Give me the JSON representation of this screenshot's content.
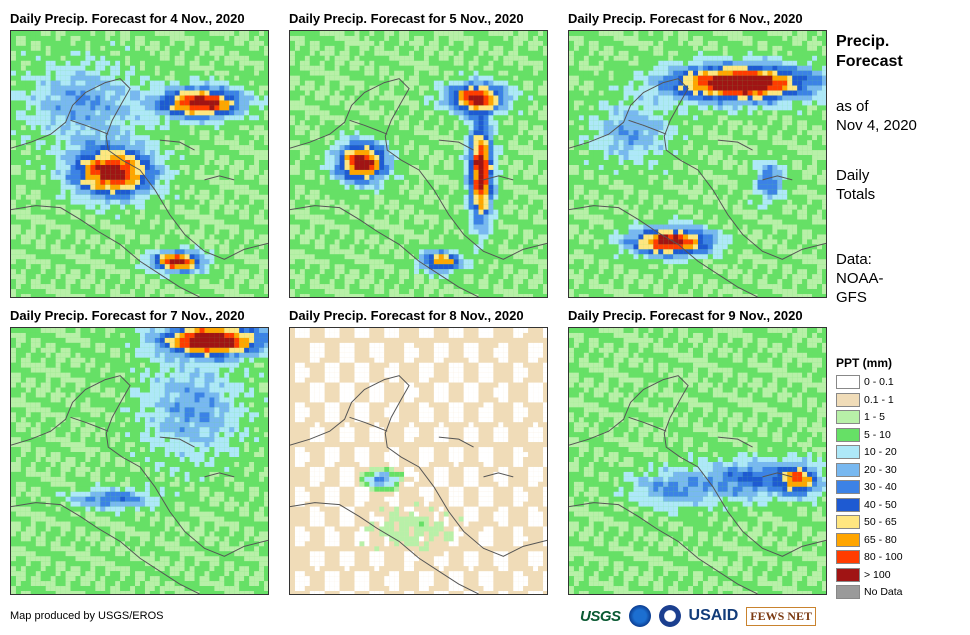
{
  "panels": [
    {
      "title": "Daily Precip. Forecast for 4 Nov., 2020"
    },
    {
      "title": "Daily Precip. Forecast for 5 Nov., 2020"
    },
    {
      "title": "Daily Precip. Forecast for 6 Nov., 2020"
    },
    {
      "title": "Daily Precip. Forecast for 7 Nov., 2020"
    },
    {
      "title": "Daily Precip. Forecast for 8 Nov., 2020"
    },
    {
      "title": "Daily Precip. Forecast for 9 Nov., 2020"
    }
  ],
  "side": {
    "heading_line1": "Precip.",
    "heading_line2": "Forecast",
    "asof_line1": "as of",
    "asof_line2": "Nov 4, 2020",
    "daily_line1": "Daily",
    "daily_line2": "Totals",
    "data_line1": "Data:",
    "data_line2": "NOAA-",
    "data_line3": "GFS"
  },
  "legend": {
    "title": "PPT (mm)",
    "items": [
      {
        "label": "0 - 0.1",
        "color": "#ffffff"
      },
      {
        "label": "0.1 - 1",
        "color": "#f0dcb8"
      },
      {
        "label": "1 - 5",
        "color": "#b8f0a8"
      },
      {
        "label": "5 - 10",
        "color": "#66e066"
      },
      {
        "label": "10 - 20",
        "color": "#aee8f8"
      },
      {
        "label": "20 - 30",
        "color": "#78b8f0"
      },
      {
        "label": "30 - 40",
        "color": "#3c82e6"
      },
      {
        "label": "40 - 50",
        "color": "#1e5ad2"
      },
      {
        "label": "50 - 65",
        "color": "#ffe680"
      },
      {
        "label": "65 - 80",
        "color": "#ffa500"
      },
      {
        "label": "80 - 100",
        "color": "#ff3c00"
      },
      {
        "label": "> 100",
        "color": "#a01414"
      },
      {
        "label": "No Data",
        "color": "#9a9a9a"
      }
    ]
  },
  "credit": "Map produced by USGS/EROS",
  "logos": {
    "usgs": "USGS",
    "usaid": "USAID",
    "fews": "FEWS NET"
  }
}
